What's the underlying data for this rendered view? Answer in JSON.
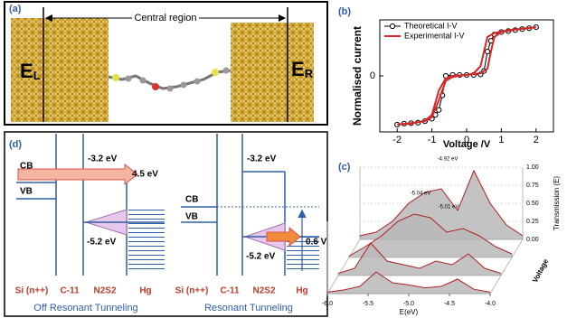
{
  "panel_a": {
    "label": "(a)",
    "region": "Central region",
    "left_electrode": {
      "symbol": "E",
      "subscript": "L"
    },
    "right_electrode": {
      "symbol": "E",
      "subscript": "R"
    }
  },
  "chart_data": [
    {
      "type": "line",
      "label": "(b)",
      "xlabel": "Voltage /V",
      "ylabel": "Normalised current",
      "xlim": [
        -2.5,
        2.5
      ],
      "ylim": [
        -1.15,
        1.15
      ],
      "xticks": [
        -2,
        -1,
        0,
        1,
        2
      ],
      "yticks": [
        0
      ],
      "grid": false,
      "legend": "upper left",
      "series": [
        {
          "name": "Theoretical I-V",
          "color": "#000000",
          "marker": "circle",
          "x": [
            -2,
            -1.8,
            -1.6,
            -1.4,
            -1.2,
            -1.0,
            -0.9,
            -0.8,
            -0.7,
            -0.6,
            -0.4,
            -0.2,
            0,
            0.2,
            0.4,
            0.5,
            0.6,
            0.7,
            0.8,
            1.0,
            1.2,
            1.4,
            1.6,
            1.8,
            2
          ],
          "values": [
            -1,
            -0.98,
            -0.97,
            -0.96,
            -0.93,
            -0.88,
            -0.8,
            -0.7,
            -0.4,
            0,
            0.02,
            0.02,
            0.02,
            0.02,
            0.03,
            0.1,
            0.5,
            0.72,
            0.85,
            0.9,
            0.92,
            0.94,
            0.96,
            0.98,
            1
          ]
        },
        {
          "name": "Experimental I-V",
          "color": "#d62728",
          "x": [
            -2,
            -1.6,
            -1.2,
            -1.0,
            -0.8,
            -0.6,
            -0.4,
            0,
            0.4,
            0.6,
            0.7,
            0.8,
            1.0,
            1.4,
            1.8,
            2,
            1.6,
            1.2,
            0.8,
            0.6,
            0.4,
            0.2,
            0,
            -0.4,
            -0.6,
            -0.8,
            -1.0,
            -1.2,
            -1.6,
            -2
          ],
          "values": [
            -1,
            -0.98,
            -0.92,
            -0.8,
            -0.3,
            -0.05,
            0,
            0.02,
            0.05,
            0.15,
            0.5,
            0.8,
            0.9,
            0.95,
            0.98,
            1,
            0.97,
            0.94,
            0.88,
            0.8,
            0.2,
            0.05,
            0.02,
            -0.02,
            -0.1,
            -0.5,
            -0.85,
            -0.93,
            -0.97,
            -1
          ]
        }
      ]
    },
    {
      "type": "ridge",
      "label": "(c)",
      "xlabel": "E(eV)",
      "zlabel": "Transmission (E)",
      "depth_label": "Voltage",
      "xlim": [
        -6.0,
        -4.0
      ],
      "zlim": [
        0,
        1
      ],
      "xticks": [
        {
          "value": -6,
          "label": "-6.0"
        },
        {
          "value": -5.5,
          "label": "-5.5"
        },
        {
          "value": -5,
          "label": "-5.0"
        },
        {
          "value": -4.5,
          "label": "-4.5"
        },
        {
          "value": -4,
          "label": "-4.0"
        }
      ],
      "zticks": [
        {
          "value": 0,
          "label": "0.00"
        },
        {
          "value": 0.25,
          "label": "0.25"
        },
        {
          "value": 0.5,
          "label": "0.50"
        },
        {
          "value": 0.75,
          "label": "0.75"
        },
        {
          "value": 1,
          "label": "1.00"
        }
      ],
      "x": [
        -6.0,
        -5.8,
        -5.6,
        -5.4,
        -5.2,
        -5.0,
        -4.8,
        -4.6,
        -4.4,
        -4.2,
        -4.0
      ],
      "series": [
        {
          "color": "#b22222",
          "values": [
            0.02,
            0.05,
            0.1,
            0.3,
            0.15,
            0.12,
            0.08,
            0.1,
            0.2,
            0.06,
            0.02
          ]
        },
        {
          "color": "#b22222",
          "values": [
            0.03,
            0.1,
            0.45,
            0.2,
            0.15,
            0.1,
            0.2,
            0.15,
            0.3,
            0.1,
            0.03
          ]
        },
        {
          "color": "#b22222",
          "values": [
            0.02,
            0.15,
            0.3,
            0.5,
            0.6,
            0.55,
            0.35,
            0.4,
            0.3,
            0.15,
            0.05
          ]
        },
        {
          "color": "#b22222",
          "values": [
            0.05,
            0.1,
            0.25,
            0.5,
            0.65,
            0.7,
            0.4,
            0.95,
            0.5,
            0.2,
            0.05
          ]
        }
      ],
      "annotations": [
        "-4.92 eV",
        "-5.04 eV",
        "-5.01 eV"
      ]
    }
  ],
  "panel_d": {
    "label": "(d)",
    "diagrams": [
      {
        "cb": "CB",
        "vb": "VB",
        "lumo": "-3.2 eV",
        "homo": "-5.2 eV",
        "bias": "4.5 eV",
        "layers": [
          "Si (n++)",
          "C-11",
          "N2S2",
          "Hg"
        ],
        "caption": "Off Resonant Tunneling"
      },
      {
        "cb": "CB",
        "vb": "VB",
        "lumo": "-3.2 eV",
        "homo": "-5.2 eV",
        "bias": "0.6 V",
        "layers": [
          "Si (n++)",
          "C-11",
          "N2S2",
          "Hg"
        ],
        "caption": "Resonant Tunneling"
      }
    ]
  }
}
